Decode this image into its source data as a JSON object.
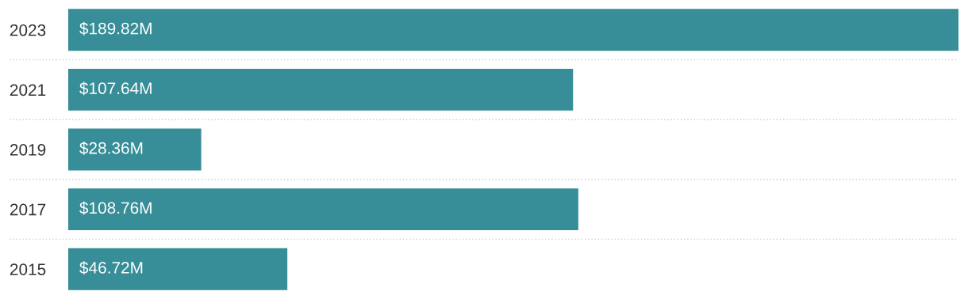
{
  "chart_data": {
    "type": "bar",
    "orientation": "horizontal",
    "categories": [
      "2023",
      "2021",
      "2019",
      "2017",
      "2015"
    ],
    "values": [
      189.82,
      107.64,
      28.36,
      108.76,
      46.72
    ],
    "value_labels": [
      "$189.82M",
      "$107.64M",
      "$28.36M",
      "$108.76M",
      "$46.72M"
    ],
    "color": "#388e98",
    "grid": "y"
  }
}
